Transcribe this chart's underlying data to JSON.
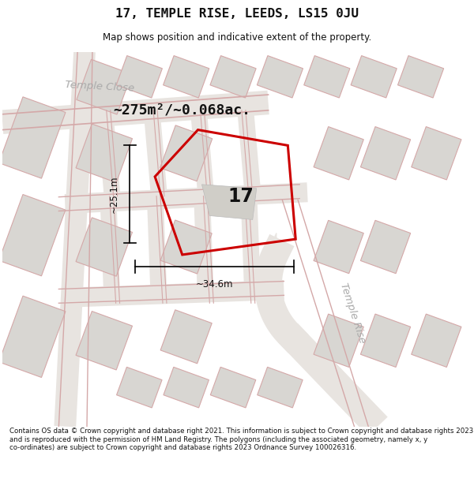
{
  "title": "17, TEMPLE RISE, LEEDS, LS15 0JU",
  "subtitle": "Map shows position and indicative extent of the property.",
  "footer": "Contains OS data © Crown copyright and database right 2021. This information is subject to Crown copyright and database rights 2023 and is reproduced with the permission of HM Land Registry. The polygons (including the associated geometry, namely x, y co-ordinates) are subject to Crown copyright and database rights 2023 Ordnance Survey 100026316.",
  "bg_color": "#ffffff",
  "map_bg_color": "#eeece8",
  "area_text": "~275m²/~0.068ac.",
  "number_text": "17",
  "width_label": "~34.6m",
  "height_label": "~25.1m",
  "street_label_1": "Temple Close",
  "street_label_2": "Temple Rise",
  "plot_color": "#cc0000",
  "building_face_color": "#d0cec8",
  "block_face_color": "#d8d6d2",
  "block_edge_color": "#d4a8a8",
  "road_line_color": "#d4a8a8",
  "street_label_color": "#aaaaaa"
}
